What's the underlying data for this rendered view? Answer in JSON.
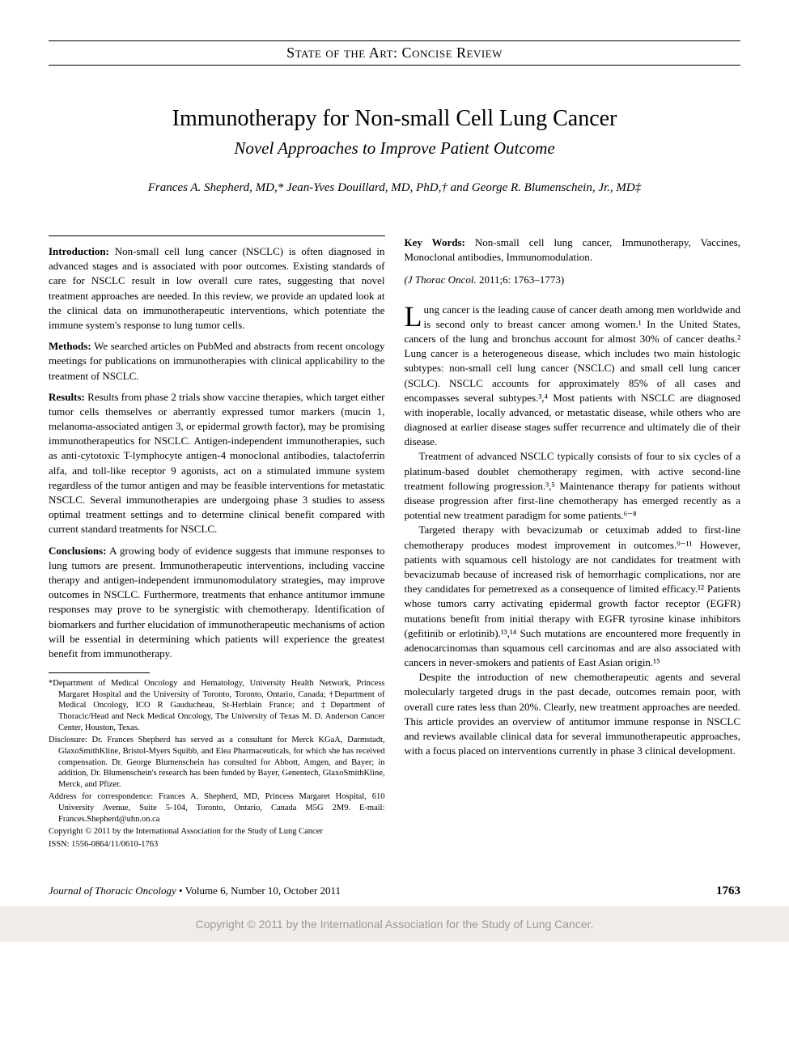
{
  "header": {
    "section_title": "State of the Art: Concise Review"
  },
  "article": {
    "title": "Immunotherapy for Non-small Cell Lung Cancer",
    "subtitle": "Novel Approaches to Improve Patient Outcome",
    "authors": "Frances A. Shepherd, MD,* Jean-Yves Douillard, MD, PhD,† and George R. Blumenschein, Jr., MD‡"
  },
  "abstract": {
    "introduction_label": "Introduction:",
    "introduction": " Non-small cell lung cancer (NSCLC) is often diagnosed in advanced stages and is associated with poor outcomes. Existing standards of care for NSCLC result in low overall cure rates, suggesting that novel treatment approaches are needed. In this review, we provide an updated look at the clinical data on immunotherapeutic interventions, which potentiate the immune system's response to lung tumor cells.",
    "methods_label": "Methods:",
    "methods": " We searched articles on PubMed and abstracts from recent oncology meetings for publications on immunotherapies with clinical applicability to the treatment of NSCLC.",
    "results_label": "Results:",
    "results": " Results from phase 2 trials show vaccine therapies, which target either tumor cells themselves or aberrantly expressed tumor markers (mucin 1, melanoma-associated antigen 3, or epidermal growth factor), may be promising immunotherapeutics for NSCLC. Antigen-independent immunotherapies, such as anti-cytotoxic T-lymphocyte antigen-4 monoclonal antibodies, talactoferrin alfa, and toll-like receptor 9 agonists, act on a stimulated immune system regardless of the tumor antigen and may be feasible interventions for metastatic NSCLC. Several immunotherapies are undergoing phase 3 studies to assess optimal treatment settings and to determine clinical benefit compared with current standard treatments for NSCLC.",
    "conclusions_label": "Conclusions:",
    "conclusions": " A growing body of evidence suggests that immune responses to lung tumors are present. Immunotherapeutic interventions, including vaccine therapy and antigen-independent immunomodulatory strategies, may improve outcomes in NSCLC. Furthermore, treatments that enhance antitumor immune responses may prove to be synergistic with chemotherapy. Identification of biomarkers and further elucidation of immunotherapeutic mechanisms of action will be essential in determining which patients will experience the greatest benefit from immunotherapy."
  },
  "footnotes": {
    "affiliations": "*Department of Medical Oncology and Hematology, University Health Network, Princess Margaret Hospital and the University of Toronto, Toronto, Ontario, Canada; †Department of Medical Oncology, ICO R Gauducheau, St-Herblain France; and ‡Department of Thoracic/Head and Neck Medical Oncology, The University of Texas M. D. Anderson Cancer Center, Houston, Texas.",
    "disclosure": "Disclosure: Dr. Frances Shepherd has served as a consultant for Merck KGaA, Darmstadt, GlaxoSmithKline, Bristol-Myers Squibb, and Elea Pharmaceuticals, for which she has received compensation. Dr. George Blumenschein has consulted for Abbott, Amgen, and Bayer; in addition, Dr. Blumenschein's research has been funded by Bayer, Genentech, GlaxoSmithKline, Merck, and Pfizer.",
    "correspondence": "Address for correspondence: Frances A. Shepherd, MD, Princess Margaret Hospital, 610 University Avenue, Suite 5-104, Toronto, Ontario, Canada M5G 2M9. E-mail: Frances.Shepherd@uhn.on.ca",
    "copyright": "Copyright © 2011 by the International Association for the Study of Lung Cancer",
    "issn": "ISSN: 1556-0864/11/0610-1763"
  },
  "keywords": {
    "label": "Key Words:",
    "text": " Non-small cell lung cancer, Immunotherapy, Vaccines, Monoclonal antibodies, Immunomodulation."
  },
  "citation": {
    "journal": "(J Thorac Oncol.",
    "details": " 2011;6: 1763–1773)"
  },
  "body": {
    "p1_first": "L",
    "p1": "ung cancer is the leading cause of cancer death among men worldwide and is second only to breast cancer among women.¹ In the United States, cancers of the lung and bronchus account for almost 30% of cancer deaths.² Lung cancer is a heterogeneous disease, which includes two main histologic subtypes: non-small cell lung cancer (NSCLC) and small cell lung cancer (SCLC). NSCLC accounts for approximately 85% of all cases and encompasses several subtypes.³,⁴ Most patients with NSCLC are diagnosed with inoperable, locally advanced, or metastatic disease, while others who are diagnosed at earlier disease stages suffer recurrence and ultimately die of their disease.",
    "p2": "Treatment of advanced NSCLC typically consists of four to six cycles of a platinum-based doublet chemotherapy regimen, with active second-line treatment following progression.³,⁵ Maintenance therapy for patients without disease progression after first-line chemotherapy has emerged recently as a potential new treatment paradigm for some patients.⁶⁻⁸",
    "p3": "Targeted therapy with bevacizumab or cetuximab added to first-line chemotherapy produces modest improvement in outcomes.⁹⁻¹¹ However, patients with squamous cell histology are not candidates for treatment with bevacizumab because of increased risk of hemorrhagic complications, nor are they candidates for pemetrexed as a consequence of limited efficacy.¹² Patients whose tumors carry activating epidermal growth factor receptor (EGFR) mutations benefit from initial therapy with EGFR tyrosine kinase inhibitors (gefitinib or erlotinib).¹³,¹⁴ Such mutations are encountered more frequently in adenocarcinomas than squamous cell carcinomas and are also associated with cancers in never-smokers and patients of East Asian origin.¹⁵",
    "p4": "Despite the introduction of new chemotherapeutic agents and several molecularly targeted drugs in the past decade, outcomes remain poor, with overall cure rates less than 20%. Clearly, new treatment approaches are needed. This article provides an overview of antitumor immune response in NSCLC and reviews available clinical data for several immunotherapeutic approaches, with a focus placed on interventions currently in phase 3 clinical development."
  },
  "footer": {
    "journal": "Journal of Thoracic Oncology",
    "issue": " • Volume 6, Number 10, October 2011",
    "page": "1763"
  },
  "copyright_bar": "Copyright © 2011 by the International Association for the Study of Lung Cancer."
}
